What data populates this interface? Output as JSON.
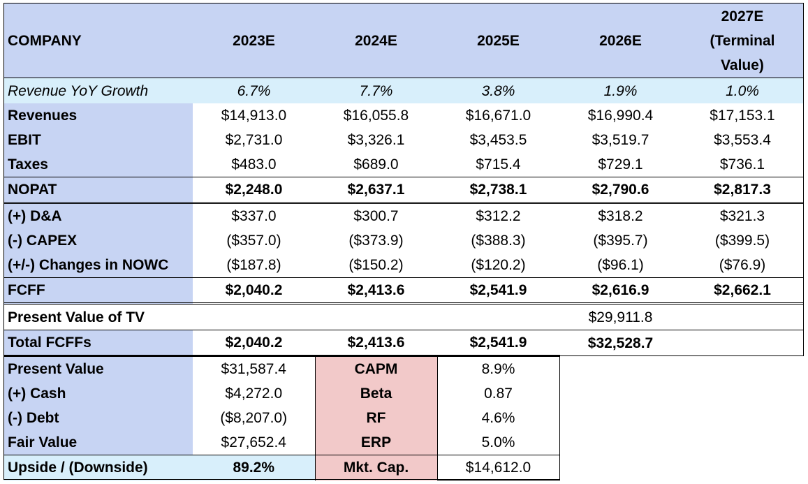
{
  "header": {
    "company": "COMPANY",
    "years": [
      "2023E",
      "2024E",
      "2025E",
      "2026E",
      "2027E (Terminal Value)"
    ],
    "last_line1": "2027E",
    "last_line2": "(Terminal",
    "last_line3": "Value)"
  },
  "growth": {
    "label": "Revenue YoY Growth",
    "values": [
      "6.7%",
      "7.7%",
      "3.8%",
      "1.9%",
      "1.0%"
    ]
  },
  "rows": [
    {
      "label": "Revenues",
      "values": [
        "$14,913.0",
        "$16,055.8",
        "$16,671.0",
        "$16,990.4",
        "$17,153.1"
      ]
    },
    {
      "label": "EBIT",
      "values": [
        "$2,731.0",
        "$3,326.1",
        "$3,453.5",
        "$3,519.7",
        "$3,553.4"
      ]
    },
    {
      "label": "Taxes",
      "values": [
        "$483.0",
        "$689.0",
        "$715.4",
        "$729.1",
        "$736.1"
      ]
    },
    {
      "label": "NOPAT",
      "values": [
        "$2,248.0",
        "$2,637.1",
        "$2,738.1",
        "$2,790.6",
        "$2,817.3"
      ]
    },
    {
      "label": "(+) D&A",
      "values": [
        "$337.0",
        "$300.7",
        "$312.2",
        "$318.2",
        "$321.3"
      ]
    },
    {
      "label": "(-) CAPEX",
      "values": [
        "($357.0)",
        "($373.9)",
        "($388.3)",
        "($395.7)",
        "($399.5)"
      ]
    },
    {
      "label": "(+/-) Changes in NOWC",
      "values": [
        "($187.8)",
        "($150.2)",
        "($120.2)",
        "($96.1)",
        "($76.9)"
      ]
    },
    {
      "label": "FCFF",
      "values": [
        "$2,040.2",
        "$2,413.6",
        "$2,541.9",
        "$2,616.9",
        "$2,662.1"
      ]
    }
  ],
  "pv_tv": {
    "label": "Present Value of TV",
    "value_2026": "$29,911.8"
  },
  "total_fcff": {
    "label": "Total FCFFs",
    "values": [
      "$2,040.2",
      "$2,413.6",
      "$2,541.9",
      "$32,528.7"
    ]
  },
  "valuation": [
    {
      "label": "Present Value",
      "value": "$31,587.4",
      "param": "CAPM",
      "param_value": "8.9%"
    },
    {
      "label": "(+) Cash",
      "value": "$4,272.0",
      "param": "Beta",
      "param_value": "0.87"
    },
    {
      "label": "(-) Debt",
      "value": "($8,207.0)",
      "param": "RF",
      "param_value": "4.6%"
    },
    {
      "label": "Fair Value",
      "value": "$27,652.4",
      "param": "ERP",
      "param_value": "5.0%"
    },
    {
      "label": "Upside / (Downside)",
      "value": "89.2%",
      "param": "Mkt. Cap.",
      "param_value": "$14,612.0"
    }
  ],
  "colors": {
    "header_blue": "#c7d4f3",
    "light_cyan": "#d8effb",
    "pink": "#f2c9c9"
  }
}
